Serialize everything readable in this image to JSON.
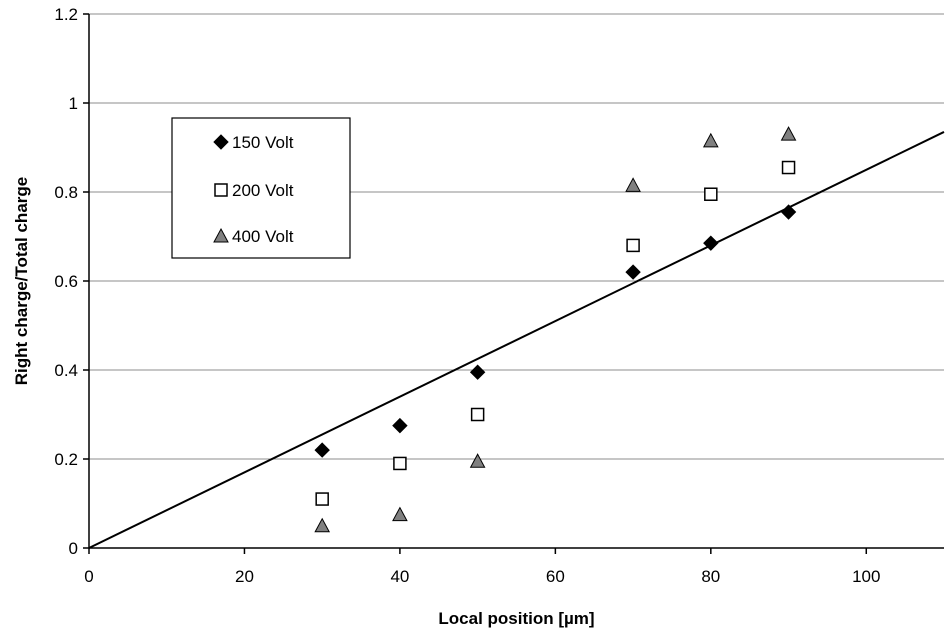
{
  "chart_data": {
    "type": "scatter",
    "xlabel": "Local position [µm]",
    "ylabel": "Right charge/Total charge",
    "xlim": [
      0,
      110
    ],
    "ylim": [
      0,
      1.2
    ],
    "x_ticks": [
      0,
      20,
      40,
      60,
      80,
      100
    ],
    "x_tick_labels": [
      "0",
      "20",
      "40",
      "60",
      "80",
      "100"
    ],
    "y_ticks": [
      0,
      0.2,
      0.4,
      0.6,
      0.8,
      1.0,
      1.2
    ],
    "y_tick_labels": [
      "0",
      "0.2",
      "0.4",
      "0.6",
      "0.8",
      "1",
      "1.2"
    ],
    "grid": "horizontal",
    "legend_position": "upper-left",
    "series": [
      {
        "name": "150 Volt",
        "marker": "diamond",
        "color": "#000000",
        "x": [
          30,
          40,
          50,
          70,
          80,
          90
        ],
        "y": [
          0.22,
          0.275,
          0.395,
          0.62,
          0.685,
          0.755
        ]
      },
      {
        "name": "200 Volt",
        "marker": "square-open",
        "color": "#000000",
        "x": [
          30,
          40,
          50,
          70,
          80,
          90
        ],
        "y": [
          0.11,
          0.19,
          0.3,
          0.68,
          0.795,
          0.855
        ]
      },
      {
        "name": "400 Volt",
        "marker": "triangle",
        "color": "#808080",
        "x": [
          30,
          40,
          50,
          70,
          80,
          90
        ],
        "y": [
          0.05,
          0.075,
          0.195,
          0.815,
          0.915,
          0.93
        ]
      }
    ],
    "fit_line": {
      "color": "#000000",
      "x": [
        0,
        110
      ],
      "y": [
        0,
        0.935
      ]
    }
  }
}
